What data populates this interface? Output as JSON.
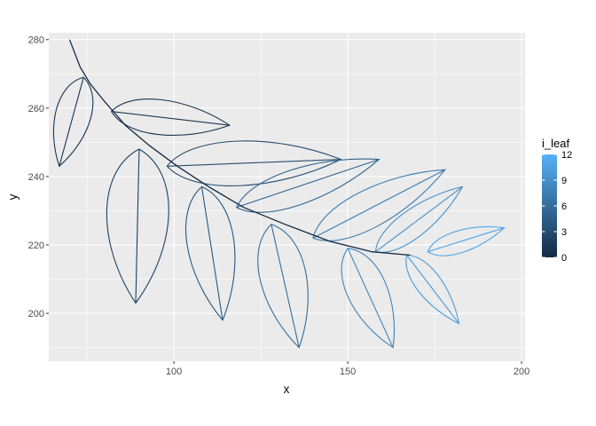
{
  "chart_data": {
    "type": "line",
    "title": "",
    "xlabel": "x",
    "ylabel": "y",
    "xlim": [
      64,
      201
    ],
    "ylim": [
      186,
      282
    ],
    "x_ticks": [
      100,
      150,
      200
    ],
    "y_ticks": [
      200,
      220,
      240,
      260,
      280
    ],
    "grid": true,
    "panel_background": "#ebebeb",
    "grid_color": "#ffffff",
    "legend": {
      "title": "i_leaf",
      "position": "right",
      "ticks": [
        0,
        3,
        6,
        9,
        12
      ],
      "low_color": "#132b43",
      "high_color": "#56b1f7"
    },
    "stem": {
      "i_leaf": 0,
      "points": [
        [
          70,
          280
        ],
        [
          73,
          272
        ],
        [
          76,
          267
        ],
        [
          80,
          262
        ],
        [
          86,
          255
        ],
        [
          93,
          249
        ],
        [
          101,
          243
        ],
        [
          110,
          237
        ],
        [
          120,
          231
        ],
        [
          132,
          226
        ],
        [
          145,
          221
        ],
        [
          157,
          218
        ],
        [
          168,
          217
        ]
      ]
    },
    "leaves": [
      {
        "i_leaf": 1,
        "base": [
          74,
          269
        ],
        "tip": [
          67,
          243
        ],
        "width": 0.42
      },
      {
        "i_leaf": 1,
        "base": [
          82,
          259
        ],
        "tip": [
          116,
          255
        ],
        "width": 0.32
      },
      {
        "i_leaf": 2,
        "base": [
          90,
          248
        ],
        "tip": [
          89,
          203
        ],
        "width": 0.44
      },
      {
        "i_leaf": 3,
        "base": [
          98,
          243
        ],
        "tip": [
          148,
          245
        ],
        "width": 0.28
      },
      {
        "i_leaf": 4,
        "base": [
          108,
          237
        ],
        "tip": [
          114,
          198
        ],
        "width": 0.38
      },
      {
        "i_leaf": 5,
        "base": [
          118,
          231
        ],
        "tip": [
          159,
          245
        ],
        "width": 0.26
      },
      {
        "i_leaf": 6,
        "base": [
          128,
          226
        ],
        "tip": [
          136,
          190
        ],
        "width": 0.4
      },
      {
        "i_leaf": 7,
        "base": [
          140,
          222
        ],
        "tip": [
          178,
          242
        ],
        "width": 0.28
      },
      {
        "i_leaf": 8,
        "base": [
          150,
          219
        ],
        "tip": [
          163,
          190
        ],
        "width": 0.4
      },
      {
        "i_leaf": 9,
        "base": [
          158,
          218
        ],
        "tip": [
          183,
          237
        ],
        "width": 0.28
      },
      {
        "i_leaf": 10,
        "base": [
          167,
          217
        ],
        "tip": [
          182,
          197
        ],
        "width": 0.32
      },
      {
        "i_leaf": 11,
        "base": [
          173,
          218
        ],
        "tip": [
          195,
          225
        ],
        "width": 0.3
      }
    ]
  }
}
